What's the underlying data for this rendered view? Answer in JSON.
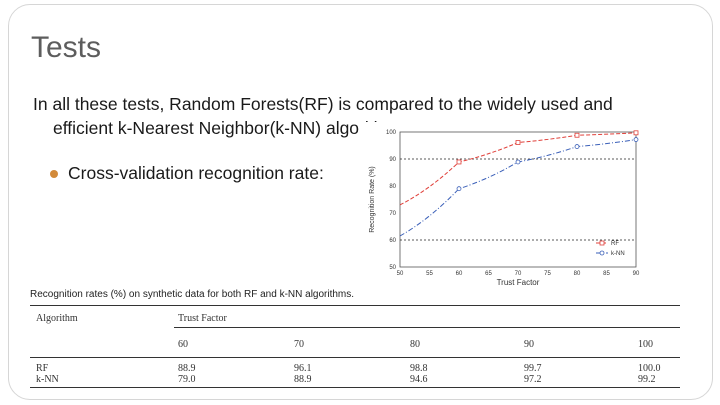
{
  "slide": {
    "title": "Tests",
    "para_line1": "In all these tests, Random Forests(RF) is compared to the widely used and",
    "para_line2": "efficient k-Nearest Neighbor(k-NN) algorithm.",
    "bullet": "Cross-validation recognition rate:"
  },
  "colors": {
    "rf": "#e0403a",
    "knn": "#3a5fb8",
    "bullet": "#d28a3a"
  },
  "chart_data": {
    "type": "line",
    "xlabel": "Trust Factor",
    "ylabel": "Recognition Rate (%)",
    "xlim": [
      50,
      90
    ],
    "ylim": [
      50,
      100
    ],
    "x_ticks": [
      "50",
      "55",
      "60",
      "65",
      "70",
      "75",
      "80",
      "85",
      "90"
    ],
    "y_ticks": [
      "50",
      "60",
      "70",
      "80",
      "90",
      "100"
    ],
    "x": [
      50,
      60,
      70,
      80,
      90
    ],
    "series": [
      {
        "name": "RF",
        "values": [
          73.0,
          88.9,
          96.1,
          98.8,
          99.7
        ]
      },
      {
        "name": "k-NN",
        "values": [
          61.5,
          79.0,
          88.9,
          94.6,
          97.2
        ]
      }
    ],
    "reference_lines": [
      90,
      60
    ],
    "legend": "bottom-right"
  },
  "table": {
    "caption": "Recognition rates (%) on synthetic data for both RF and k-NN algorithms.",
    "col_algorithm": "Algorithm",
    "col_trust": "Trust Factor",
    "factors": [
      "60",
      "70",
      "80",
      "90",
      "100"
    ],
    "rows": [
      {
        "name": "RF",
        "values": [
          "88.9",
          "96.1",
          "98.8",
          "99.7",
          "100.0"
        ]
      },
      {
        "name": "k-NN",
        "values": [
          "79.0",
          "88.9",
          "94.6",
          "97.2",
          "99.2"
        ]
      }
    ]
  }
}
